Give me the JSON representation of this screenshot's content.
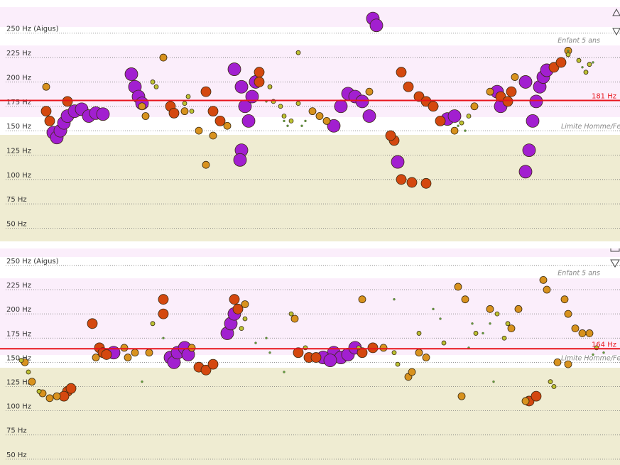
{
  "chart_data": [
    {
      "type": "scatter",
      "xlim": [
        0,
        873
      ],
      "ylim": [
        38,
        284
      ],
      "yticks": [
        {
          "value": 250,
          "label": "250 Hz (Aigus)"
        },
        {
          "value": 225,
          "label": "225 Hz"
        },
        {
          "value": 200,
          "label": "200 Hz"
        },
        {
          "value": 175,
          "label": "175 Hz"
        },
        {
          "value": 150,
          "label": "150 Hz"
        },
        {
          "value": 125,
          "label": "125 Hz"
        },
        {
          "value": 100,
          "label": "100 Hz"
        },
        {
          "value": 75,
          "label": "75 Hz"
        },
        {
          "value": 50,
          "label": "50 Hz"
        }
      ],
      "grid": true,
      "reference_line": {
        "value": 181,
        "label": "181 Hz",
        "color": "#e8141c"
      },
      "annotations": [
        {
          "text": "Enfant 5 ans",
          "value": 238
        },
        {
          "text": "Limite Homme/Femme",
          "value": 150
        }
      ],
      "series": [
        {
          "color": "#a21fd0",
          "size": 9,
          "x": [
            75,
            80,
            85,
            90,
            95,
            105,
            115,
            125,
            135,
            145,
            185,
            190,
            195,
            200,
            330,
            340,
            345,
            350,
            355,
            360,
            340,
            338,
            470,
            480,
            490,
            500,
            510,
            520,
            525,
            530,
            560,
            630,
            640,
            740,
            745,
            750,
            755,
            760,
            765,
            770,
            700,
            705,
            740
          ],
          "values": [
            148,
            143,
            150,
            158,
            165,
            170,
            172,
            165,
            168,
            167,
            208,
            195,
            185,
            178,
            213,
            195,
            175,
            160,
            185,
            200,
            130,
            120,
            155,
            175,
            188,
            185,
            180,
            165,
            265,
            258,
            118,
            162,
            165,
            108,
            130,
            160,
            180,
            195,
            205,
            212,
            190,
            175,
            200
          ]
        },
        {
          "color": "#d4480f",
          "size": 7,
          "x": [
            65,
            70,
            95,
            240,
            245,
            290,
            300,
            310,
            365,
            365,
            565,
            575,
            590,
            600,
            610,
            620,
            565,
            580,
            600,
            555,
            550,
            705,
            715,
            720,
            780,
            790
          ],
          "values": [
            170,
            160,
            180,
            175,
            168,
            190,
            170,
            160,
            210,
            200,
            210,
            195,
            185,
            180,
            175,
            160,
            100,
            97,
            96,
            140,
            145,
            185,
            180,
            190,
            215,
            220
          ]
        },
        {
          "color": "#d8921e",
          "size": 5,
          "x": [
            65,
            200,
            205,
            230,
            260,
            280,
            300,
            320,
            440,
            450,
            460,
            520,
            640,
            668,
            690,
            725,
            800,
            290
          ],
          "values": [
            195,
            175,
            165,
            225,
            170,
            150,
            145,
            155,
            170,
            165,
            160,
            190,
            150,
            175,
            190,
            205,
            232,
            115
          ]
        },
        {
          "color": "#bcc232",
          "size": 3,
          "x": [
            215,
            220,
            265,
            270,
            380,
            385,
            395,
            400,
            410,
            420,
            650,
            660,
            800,
            815,
            825,
            830,
            420,
            260
          ],
          "values": [
            200,
            195,
            185,
            170,
            195,
            180,
            175,
            165,
            160,
            178,
            158,
            165,
            228,
            222,
            210,
            218,
            230,
            178
          ]
        },
        {
          "color": "#5f9e3c",
          "size": 1.5,
          "x": [
            375,
            400,
            405,
            425,
            430,
            800,
            820,
            835,
            655,
            645
          ],
          "values": [
            180,
            160,
            155,
            155,
            160,
            232,
            215,
            220,
            150,
            155
          ]
        }
      ]
    },
    {
      "type": "scatter",
      "xlim": [
        0,
        873
      ],
      "ylim": [
        44,
        269
      ],
      "yticks": [
        {
          "value": 250,
          "label": "250 Hz (Aigus)"
        },
        {
          "value": 225,
          "label": "225 Hz"
        },
        {
          "value": 200,
          "label": "200 Hz"
        },
        {
          "value": 175,
          "label": "175 Hz"
        },
        {
          "value": 150,
          "label": "150 Hz"
        },
        {
          "value": 125,
          "label": "125 Hz"
        },
        {
          "value": 100,
          "label": "100 Hz"
        },
        {
          "value": 75,
          "label": "75 Hz"
        },
        {
          "value": 50,
          "label": "50 Hz"
        }
      ],
      "grid": true,
      "reference_line": {
        "value": 164,
        "label": "164 Hz",
        "color": "#e8141c"
      },
      "annotations": [
        {
          "text": "Enfant 5 ans",
          "value": 238
        },
        {
          "text": "Limite Homme/Femme",
          "value": 150
        }
      ],
      "series": [
        {
          "color": "#a21fd0",
          "size": 9,
          "x": [
            160,
            240,
            245,
            250,
            260,
            265,
            320,
            325,
            330,
            470,
            480,
            490,
            500,
            455,
            465
          ],
          "values": [
            160,
            155,
            150,
            160,
            165,
            158,
            180,
            190,
            200,
            160,
            155,
            158,
            165,
            155,
            152
          ]
        },
        {
          "color": "#d4480f",
          "size": 7,
          "x": [
            95,
            90,
            100,
            130,
            140,
            145,
            150,
            230,
            230,
            280,
            290,
            300,
            330,
            335,
            420,
            435,
            445,
            510,
            525,
            745,
            755
          ],
          "values": [
            120,
            115,
            123,
            190,
            165,
            160,
            158,
            200,
            215,
            145,
            142,
            148,
            215,
            205,
            160,
            155,
            155,
            160,
            165,
            110,
            115
          ]
        },
        {
          "color": "#d8921e",
          "size": 5,
          "x": [
            35,
            45,
            60,
            70,
            80,
            135,
            175,
            180,
            190,
            210,
            270,
            345,
            415,
            510,
            540,
            575,
            580,
            590,
            600,
            650,
            645,
            655,
            690,
            720,
            730,
            740,
            765,
            770,
            795,
            800,
            810,
            820,
            830,
            785,
            800
          ],
          "values": [
            150,
            130,
            118,
            113,
            115,
            155,
            165,
            155,
            160,
            160,
            165,
            210,
            195,
            215,
            165,
            135,
            140,
            160,
            155,
            115,
            228,
            215,
            205,
            185,
            205,
            110,
            235,
            225,
            215,
            200,
            185,
            180,
            180,
            150,
            148
          ]
        },
        {
          "color": "#bcc232",
          "size": 3,
          "x": [
            30,
            40,
            55,
            215,
            340,
            345,
            410,
            430,
            505,
            555,
            560,
            590,
            625,
            670,
            700,
            710,
            715,
            780,
            775,
            840
          ],
          "values": [
            152,
            140,
            120,
            190,
            185,
            195,
            200,
            165,
            165,
            160,
            148,
            180,
            170,
            180,
            200,
            175,
            190,
            125,
            130,
            165
          ]
        },
        {
          "color": "#5f9e3c",
          "size": 1.5,
          "x": [
            200,
            230,
            360,
            375,
            380,
            400,
            555,
            610,
            620,
            665,
            680,
            690,
            695,
            660,
            850,
            835
          ],
          "values": [
            130,
            175,
            170,
            175,
            160,
            140,
            215,
            205,
            195,
            190,
            180,
            190,
            130,
            165,
            160,
            158
          ]
        }
      ]
    }
  ]
}
